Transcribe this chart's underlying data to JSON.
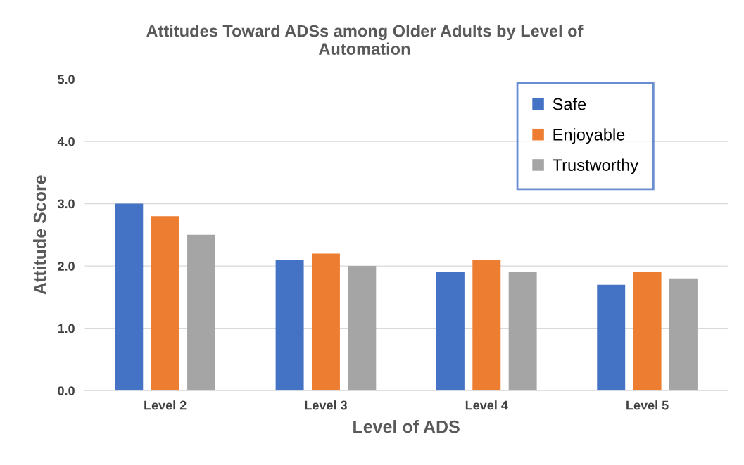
{
  "chart_data": {
    "type": "bar",
    "title": "Attitudes Toward ADSs among Older Adults by Level of\nAutomation",
    "xlabel": "Level of ADS",
    "ylabel": "Attitude Score",
    "categories": [
      "Level 2",
      "Level 3",
      "Level 4",
      "Level 5"
    ],
    "series": [
      {
        "name": "Safe",
        "color": "#4472c4",
        "values": [
          3.0,
          2.1,
          1.9,
          1.7
        ]
      },
      {
        "name": "Enjoyable",
        "color": "#ed7d31",
        "values": [
          2.8,
          2.2,
          2.1,
          1.9
        ]
      },
      {
        "name": "Trustworthy",
        "color": "#a5a5a5",
        "values": [
          2.5,
          2.0,
          1.9,
          1.8
        ]
      }
    ],
    "ylim": [
      0,
      5
    ],
    "yticks": [
      {
        "value": 0,
        "label": "0.0"
      },
      {
        "value": 1,
        "label": "1.0"
      },
      {
        "value": 2,
        "label": "2.0"
      },
      {
        "value": 3,
        "label": "3.0"
      },
      {
        "value": 4,
        "label": "4.0"
      },
      {
        "value": 5,
        "label": "5.0"
      }
    ],
    "grid": "y",
    "legend": "top right"
  }
}
